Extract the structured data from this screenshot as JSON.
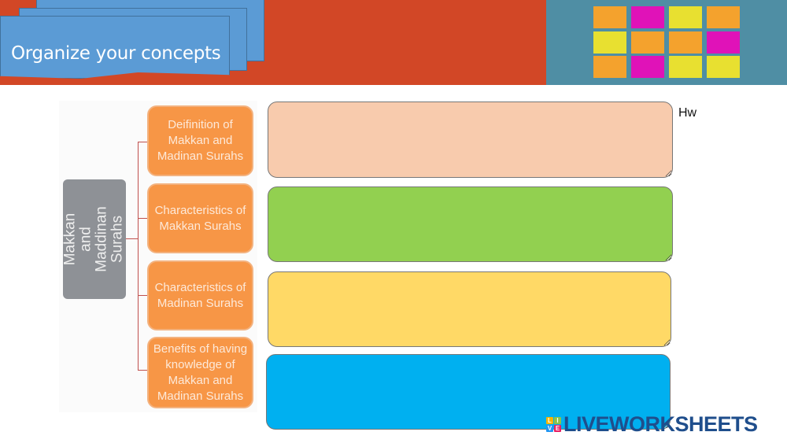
{
  "header": {
    "title": "Organize your concepts",
    "banner_color": "#d24726",
    "tab_color": "#5b9bd5"
  },
  "diagram": {
    "root": "Makkan and Maddinan Surahs",
    "nodes": [
      "Deifinition of Makkan and Madinan Surahs",
      "Characteristics of Makkan Surahs",
      "Characteristics of Madinan Surahs",
      "Benefits of having knowledge of Makkan and Madinan Surahs"
    ]
  },
  "answers": [
    {
      "value": "",
      "color": "#f8cbad"
    },
    {
      "value": "",
      "color": "#92d050"
    },
    {
      "value": "",
      "color": "#ffd966"
    },
    {
      "value": "",
      "color": "#00b0f0"
    }
  ],
  "note": "Hw",
  "logo": {
    "letters": [
      "L",
      "I",
      "V",
      "E"
    ],
    "text": "LIVEWORKSHEETS"
  }
}
